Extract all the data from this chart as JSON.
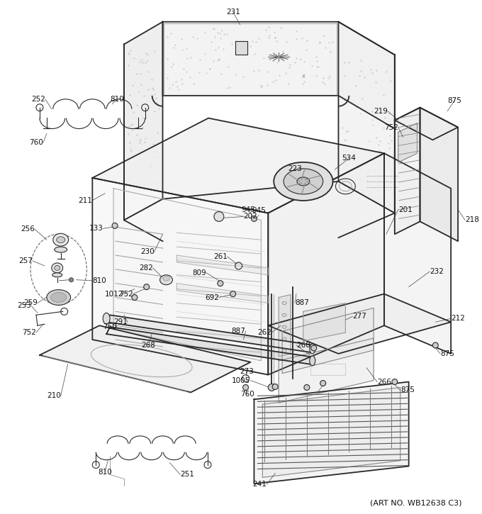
{
  "art_no": "(ART NO. WB12638 C3)",
  "bg_color": "#ffffff",
  "line_color": "#2a2a2a",
  "fig_width": 6.8,
  "fig_height": 7.25,
  "dpi": 100
}
